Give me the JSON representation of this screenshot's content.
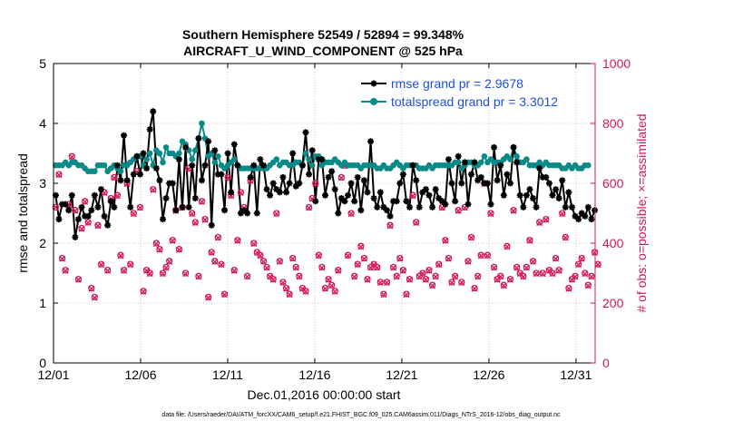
{
  "chart_data": {
    "type": "line",
    "title_line1": "Southern Hemisphere 52549 / 52894 = 99.348%",
    "title_line2": "AIRCRAFT_U_WIND_COMPONENT @ 525 hPa",
    "xlabel": "Dec.01,2016 00:00:00 start",
    "ylabel_left": "rmse and totalspread",
    "ylabel_right": "# of obs: o=possible; ×=assimilated",
    "footnote": "data file: /Users/raeder/DAI/ATM_forcXX/CAM6_setup/f.e21.FHIST_BGC.f09_025.CAM6assim.011/Diags_NTrS_2016-12/obs_diag_output.nc",
    "x_tick_labels": [
      "12/01",
      "12/06",
      "12/11",
      "12/16",
      "12/21",
      "12/26",
      "12/31"
    ],
    "x_tick_days": [
      1,
      6,
      11,
      16,
      21,
      26,
      31
    ],
    "xlim_days": [
      1,
      32.1
    ],
    "ylim_left": [
      0,
      5
    ],
    "y_left_ticks": [
      "0",
      "1",
      "2",
      "3",
      "4",
      "5"
    ],
    "ylim_right": [
      0,
      1000
    ],
    "y_right_ticks": [
      "0",
      "200",
      "400",
      "600",
      "800",
      "1000"
    ],
    "legend": [
      {
        "label": "rmse grand pr = 2.9678",
        "color": "#000000",
        "marker": "star"
      },
      {
        "label": "totalspread grand pr = 3.3012",
        "color": "#0b8a88",
        "marker": "circle"
      }
    ],
    "legend_location": "top-right",
    "colors": {
      "rmse": "#000000",
      "spread": "#0b8a88",
      "obs": "#d4175a",
      "legend_text": "#1f4fe0",
      "right_axis": "#d4175a"
    },
    "series": [
      {
        "name": "rmse",
        "axis": "left",
        "values": [
          2.8,
          2.4,
          2.65,
          2.65,
          2.55,
          2.8,
          2.1,
          2.4,
          2.6,
          2.45,
          2.45,
          2.55,
          2.8,
          2.6,
          2.9,
          2.45,
          2.3,
          2.7,
          2.6,
          3.3,
          3.05,
          3.8,
          3.05,
          2.6,
          3.15,
          3.45,
          3.15,
          3.5,
          3.25,
          3.9,
          4.2,
          3.25,
          3.05,
          2.4,
          2.75,
          3.0,
          3.0,
          2.55,
          3.4,
          2.6,
          3.6,
          2.6,
          3.3,
          2.75,
          3.75,
          3.05,
          3.3,
          3.7,
          2.3,
          3.55,
          3.15,
          3.15,
          2.55,
          3.5,
          2.85,
          3.65,
          3.3,
          2.5,
          2.55,
          2.5,
          3.1,
          3.3,
          2.5,
          3.4,
          3.3,
          2.9,
          2.8,
          3.0,
          2.9,
          2.85,
          3.1,
          2.85,
          3.0,
          3.5,
          2.95,
          3.0,
          3.3,
          3.85,
          3.15,
          3.55,
          2.7,
          3.4,
          3.4,
          2.8,
          3.1,
          3.2,
          2.9,
          2.5,
          2.75,
          2.7,
          2.8,
          3.0,
          2.7,
          3.1,
          2.55,
          3.05,
          2.85,
          3.7,
          2.75,
          2.6,
          2.85,
          2.6,
          2.55,
          2.45,
          2.7,
          2.7,
          3.0,
          3.15,
          2.7,
          2.6,
          3.3,
          3.05,
          2.6,
          2.85,
          2.9,
          2.8,
          2.6,
          2.9,
          2.75,
          2.7,
          2.65,
          3.4,
          3.0,
          2.7,
          3.45,
          3.0,
          3.35,
          2.65,
          3.15,
          3.35,
          3.05,
          3.1,
          3.0,
          3.0,
          2.65,
          3.6,
          3.05,
          3.3,
          2.8,
          3.15,
          3.0,
          3.6,
          3.35,
          2.8,
          2.6,
          2.8,
          2.9,
          2.75,
          2.6,
          3.25,
          3.1,
          3.1,
          3.0,
          2.8,
          2.9,
          2.75,
          3.05,
          2.6,
          2.85,
          2.6,
          2.45,
          2.4,
          2.5,
          2.45,
          2.6,
          2.4,
          2.55
        ]
      },
      {
        "name": "totalspread",
        "axis": "left",
        "values": [
          3.3,
          3.3,
          3.3,
          3.35,
          3.3,
          3.35,
          3.35,
          3.3,
          3.3,
          3.25,
          3.2,
          3.2,
          3.2,
          3.3,
          3.3,
          3.3,
          3.2,
          3.25,
          3.3,
          3.25,
          3.2,
          3.3,
          3.3,
          3.35,
          3.4,
          3.45,
          3.45,
          3.3,
          3.4,
          3.5,
          3.3,
          3.55,
          3.5,
          3.35,
          3.6,
          3.5,
          3.5,
          3.45,
          3.5,
          3.7,
          3.65,
          3.55,
          3.4,
          3.55,
          3.75,
          4.0,
          3.75,
          3.45,
          3.5,
          3.35,
          3.45,
          3.3,
          3.25,
          3.3,
          3.35,
          3.4,
          3.3,
          3.25,
          3.25,
          3.25,
          3.25,
          3.25,
          3.25,
          3.25,
          3.25,
          3.25,
          3.3,
          3.35,
          3.4,
          3.3,
          3.35,
          3.35,
          3.3,
          3.3,
          3.35,
          3.35,
          3.3,
          3.5,
          3.4,
          3.3,
          3.45,
          3.45,
          3.3,
          3.35,
          3.35,
          3.35,
          3.4,
          3.35,
          3.3,
          3.35,
          3.3,
          3.3,
          3.3,
          3.3,
          3.25,
          3.3,
          3.3,
          3.3,
          3.3,
          3.25,
          3.25,
          3.3,
          3.25,
          3.25,
          3.3,
          3.35,
          3.3,
          3.25,
          3.3,
          3.3,
          3.3,
          3.3,
          3.25,
          3.25,
          3.25,
          3.3,
          3.25,
          3.3,
          3.3,
          3.3,
          3.3,
          3.3,
          3.3,
          3.35,
          3.35,
          3.25,
          3.3,
          3.35,
          3.35,
          3.3,
          3.3,
          3.35,
          3.45,
          3.35,
          3.4,
          3.35,
          3.35,
          3.35,
          3.4,
          3.45,
          3.4,
          3.6,
          3.45,
          3.35,
          3.35,
          3.4,
          3.3,
          3.3,
          3.3,
          3.35,
          3.3,
          3.35,
          3.3,
          3.3,
          3.3,
          3.3,
          3.25,
          3.25,
          3.3,
          3.25,
          3.3,
          3.25,
          3.25,
          3.3,
          3.3
        ]
      },
      {
        "name": "obs_possible",
        "axis": "right",
        "values": [
          520,
          630,
          350,
          310,
          530,
          690,
          510,
          280,
          450,
          540,
          470,
          250,
          220,
          460,
          330,
          570,
          310,
          550,
          620,
          560,
          360,
          310,
          600,
          330,
          500,
          640,
          520,
          240,
          310,
          300,
          580,
          400,
          380,
          300,
          320,
          340,
          410,
          510,
          380,
          520,
          300,
          650,
          500,
          470,
          290,
          540,
          480,
          220,
          370,
          340,
          420,
          330,
          230,
          620,
          560,
          310,
          410,
          570,
          520,
          290,
          610,
          400,
          370,
          360,
          340,
          320,
          290,
          280,
          500,
          340,
          270,
          250,
          230,
          350,
          320,
          290,
          250,
          240,
          520,
          550,
          600,
          360,
          320,
          250,
          280,
          260,
          240,
          310,
          620,
          660,
          360,
          500,
          290,
          330,
          390,
          350,
          280,
          320,
          330,
          320,
          270,
          230,
          270,
          460,
          320,
          290,
          350,
          310,
          230,
          280,
          560,
          470,
          290,
          300,
          280,
          310,
          260,
          290,
          330,
          520,
          410,
          350,
          270,
          290,
          510,
          270,
          520,
          340,
          420,
          250,
          290,
          360,
          600,
          360,
          500,
          320,
          280,
          290,
          260,
          390,
          280,
          510,
          320,
          300,
          290,
          320,
          410,
          340,
          300,
          470,
          300,
          480,
          310,
          300,
          350,
          310,
          500,
          420,
          250,
          280,
          290,
          330,
          350,
          300,
          260,
          290,
          370,
          330
        ]
      },
      {
        "name": "obs_assimilated",
        "axis": "right",
        "values": [
          520,
          628,
          348,
          308,
          528,
          688,
          508,
          278,
          448,
          538,
          468,
          248,
          218,
          458,
          328,
          568,
          308,
          548,
          618,
          558,
          358,
          308,
          598,
          328,
          498,
          638,
          518,
          238,
          308,
          298,
          578,
          398,
          378,
          298,
          318,
          338,
          408,
          508,
          378,
          518,
          298,
          648,
          498,
          468,
          288,
          538,
          478,
          218,
          368,
          338,
          418,
          328,
          228,
          618,
          558,
          308,
          408,
          568,
          518,
          288,
          608,
          398,
          368,
          358,
          338,
          318,
          288,
          278,
          498,
          338,
          268,
          248,
          228,
          348,
          318,
          288,
          248,
          238,
          518,
          548,
          598,
          358,
          318,
          248,
          278,
          258,
          238,
          308,
          618,
          658,
          358,
          498,
          288,
          328,
          388,
          348,
          278,
          318,
          328,
          318,
          268,
          228,
          268,
          458,
          318,
          288,
          348,
          308,
          228,
          278,
          558,
          468,
          288,
          298,
          278,
          308,
          258,
          288,
          328,
          518,
          408,
          348,
          268,
          288,
          508,
          268,
          518,
          338,
          418,
          248,
          288,
          358,
          598,
          358,
          498,
          318,
          278,
          288,
          258,
          388,
          278,
          508,
          318,
          298,
          288,
          318,
          408,
          338,
          298,
          468,
          298,
          478,
          308,
          298,
          348,
          308,
          498,
          418,
          248,
          278,
          288,
          328,
          348,
          298,
          258,
          288,
          368,
          328
        ]
      }
    ]
  }
}
